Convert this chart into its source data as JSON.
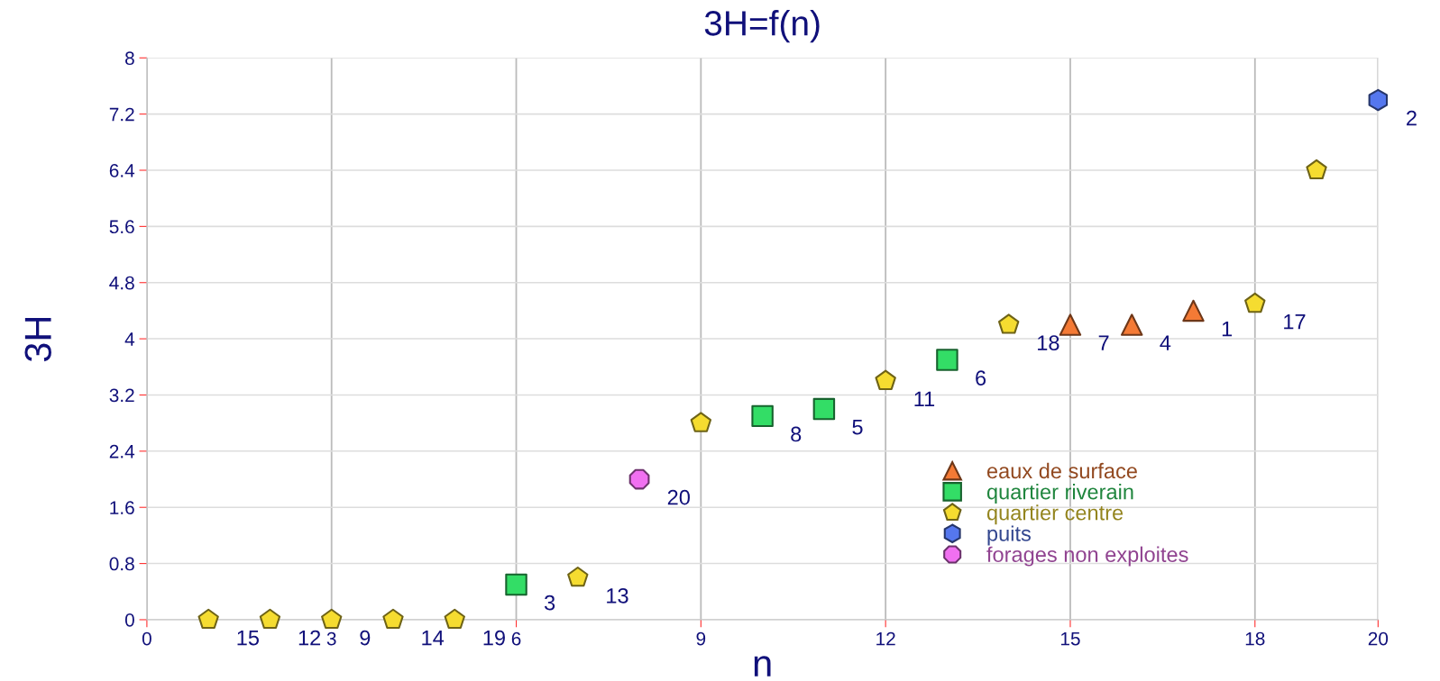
{
  "chart_data": {
    "type": "scatter",
    "title": "3H=f(n)",
    "xlabel": "n",
    "ylabel": "3H",
    "xlim": [
      0,
      20
    ],
    "xticks": [
      0,
      3,
      6,
      9,
      12,
      15,
      18,
      20
    ],
    "ylim": [
      0,
      8
    ],
    "yticks": [
      0,
      0.8,
      1.6,
      2.4,
      3.2,
      4,
      4.8,
      5.6,
      6.4,
      7.2,
      8
    ],
    "grid": true,
    "legend": "bottom right",
    "series": [
      {
        "name": "eaux de surface",
        "color": "#f47a35",
        "marker": "triangle",
        "x": [
          15,
          16,
          17
        ],
        "values": [
          4.2,
          4.2,
          4.4
        ]
      },
      {
        "name": "quartier riverain",
        "color": "#33dd66",
        "marker": "square",
        "x": [
          6,
          10,
          11,
          13
        ],
        "values": [
          0.5,
          2.9,
          3.0,
          3.7
        ]
      },
      {
        "name": "quartier centre",
        "color": "#f5dc30",
        "x": [
          1,
          2,
          3,
          4,
          5,
          7,
          9,
          12,
          14,
          18,
          19
        ],
        "values": [
          0,
          0,
          0,
          0,
          0,
          0.6,
          2.8,
          3.4,
          4.2,
          4.5,
          6.4
        ]
      },
      {
        "name": "puits",
        "color": "#5577ee",
        "x": [
          20
        ],
        "values": [
          7.4
        ]
      },
      {
        "name": "forages non exploites",
        "color": "#f070f0",
        "x": [
          8
        ],
        "values": [
          2.0
        ]
      }
    ],
    "annotations": [
      {
        "text": "15",
        "x": 1,
        "y": 0
      },
      {
        "text": "12",
        "x": 2,
        "y": 0
      },
      {
        "text": "9",
        "x": 3,
        "y": 0
      },
      {
        "text": "14",
        "x": 4,
        "y": 0
      },
      {
        "text": "19",
        "x": 5,
        "y": 0
      },
      {
        "text": "3",
        "x": 6,
        "y": 0.5
      },
      {
        "text": "13",
        "x": 7,
        "y": 0.6
      },
      {
        "text": "20",
        "x": 8,
        "y": 2.0
      },
      {
        "text": "8",
        "x": 10,
        "y": 2.9
      },
      {
        "text": "5",
        "x": 11,
        "y": 3.0
      },
      {
        "text": "11",
        "x": 12,
        "y": 3.4
      },
      {
        "text": "6",
        "x": 13,
        "y": 3.7
      },
      {
        "text": "18",
        "x": 14,
        "y": 4.2
      },
      {
        "text": "7",
        "x": 15,
        "y": 4.2
      },
      {
        "text": "4",
        "x": 16,
        "y": 4.2
      },
      {
        "text": "1",
        "x": 17,
        "y": 4.4
      },
      {
        "text": "17",
        "x": 18,
        "y": 4.5
      },
      {
        "text": "2",
        "x": 20,
        "y": 7.4
      }
    ]
  }
}
